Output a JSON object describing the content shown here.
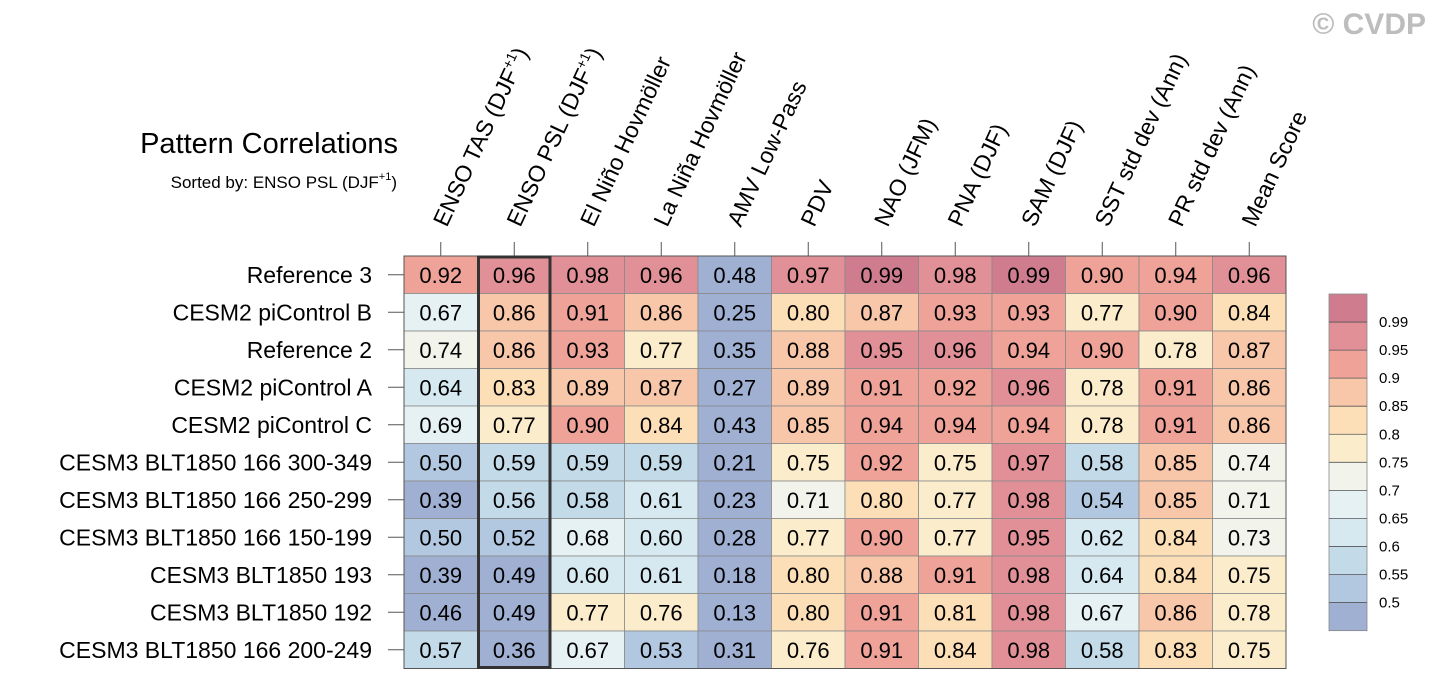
{
  "watermark": "© CVDP",
  "chart_data": {
    "type": "heatmap",
    "title": "Pattern Correlations",
    "subtitle_prefix": "Sorted by: ENSO PSL (DJF",
    "subtitle_sup": "+1",
    "subtitle_suffix": ")",
    "highlighted_column": 1,
    "columns": [
      {
        "label": "ENSO TAS (DJF",
        "sup": "+1",
        "suffix": ")"
      },
      {
        "label": "ENSO PSL (DJF",
        "sup": "+1",
        "suffix": ")"
      },
      {
        "label": "El Niño Hovmöller"
      },
      {
        "label": "La Niña Hovmöller"
      },
      {
        "label": "AMV Low-Pass"
      },
      {
        "label": "PDV"
      },
      {
        "label": "NAO (JFM)"
      },
      {
        "label": "PNA (DJF)"
      },
      {
        "label": "SAM (DJF)"
      },
      {
        "label": "SST std dev (Ann)"
      },
      {
        "label": "PR std dev (Ann)"
      },
      {
        "label": "Mean Score"
      }
    ],
    "rows": [
      {
        "label": "Reference 3",
        "values": [
          0.92,
          0.96,
          0.98,
          0.96,
          0.48,
          0.97,
          0.99,
          0.98,
          0.99,
          0.9,
          0.94,
          0.96
        ]
      },
      {
        "label": "CESM2 piControl B",
        "values": [
          0.67,
          0.86,
          0.91,
          0.86,
          0.25,
          0.8,
          0.87,
          0.93,
          0.93,
          0.77,
          0.9,
          0.84
        ]
      },
      {
        "label": "Reference 2",
        "values": [
          0.74,
          0.86,
          0.93,
          0.77,
          0.35,
          0.88,
          0.95,
          0.96,
          0.94,
          0.9,
          0.78,
          0.87
        ]
      },
      {
        "label": "CESM2 piControl A",
        "values": [
          0.64,
          0.83,
          0.89,
          0.87,
          0.27,
          0.89,
          0.91,
          0.92,
          0.96,
          0.78,
          0.91,
          0.86
        ]
      },
      {
        "label": "CESM2 piControl C",
        "values": [
          0.69,
          0.77,
          0.9,
          0.84,
          0.43,
          0.85,
          0.94,
          0.94,
          0.94,
          0.78,
          0.91,
          0.86
        ]
      },
      {
        "label": "CESM3 BLT1850 166 300-349",
        "values": [
          0.5,
          0.59,
          0.59,
          0.59,
          0.21,
          0.75,
          0.92,
          0.75,
          0.97,
          0.58,
          0.85,
          0.74
        ]
      },
      {
        "label": "CESM3 BLT1850 166 250-299",
        "values": [
          0.39,
          0.56,
          0.58,
          0.61,
          0.23,
          0.71,
          0.8,
          0.77,
          0.98,
          0.54,
          0.85,
          0.71
        ]
      },
      {
        "label": "CESM3 BLT1850 166 150-199",
        "values": [
          0.5,
          0.52,
          0.68,
          0.6,
          0.28,
          0.77,
          0.9,
          0.77,
          0.95,
          0.62,
          0.84,
          0.73
        ]
      },
      {
        "label": "CESM3 BLT1850 193",
        "values": [
          0.39,
          0.49,
          0.6,
          0.61,
          0.18,
          0.8,
          0.88,
          0.91,
          0.98,
          0.64,
          0.84,
          0.75
        ]
      },
      {
        "label": "CESM3 BLT1850 192",
        "values": [
          0.46,
          0.49,
          0.77,
          0.76,
          0.13,
          0.8,
          0.91,
          0.81,
          0.98,
          0.67,
          0.86,
          0.78
        ]
      },
      {
        "label": "CESM3 BLT1850 166 200-249",
        "values": [
          0.57,
          0.36,
          0.67,
          0.53,
          0.31,
          0.76,
          0.91,
          0.84,
          0.98,
          0.58,
          0.83,
          0.75
        ]
      }
    ],
    "colorbar": {
      "levels": [
        0.5,
        0.55,
        0.6,
        0.65,
        0.7,
        0.75,
        0.8,
        0.85,
        0.9,
        0.95,
        0.99
      ],
      "tick_labels": [
        "0.5",
        "0.55",
        "0.6",
        "0.65",
        "0.7",
        "0.75",
        "0.8",
        "0.85",
        "0.9",
        "0.95",
        "0.99"
      ],
      "colors": [
        "#9fb0d3",
        "#b2c8e0",
        "#c3dae9",
        "#d6e9f1",
        "#e6f1f4",
        "#f2f3ea",
        "#fbedcc",
        "#fddfb7",
        "#f8c6a8",
        "#eea298",
        "#e09096",
        "#cf7d8e"
      ]
    }
  }
}
